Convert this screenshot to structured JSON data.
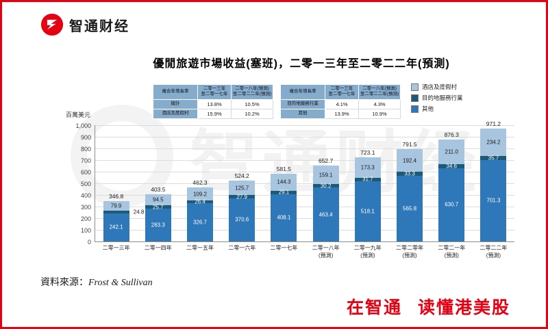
{
  "brand": {
    "logo_text": "智通财经",
    "slogan": "在智通 读懂港美股",
    "red": "#e60012"
  },
  "chart_data": {
    "type": "bar",
    "stacked": true,
    "title": "優閒旅遊市場收益(塞班)，二零一三年至二零二二年(預測)",
    "ylabel": "百萬美元",
    "ylim": [
      0,
      1000
    ],
    "ytick_interval": 100,
    "yticks": [
      "1,000",
      "900",
      "800",
      "700",
      "600",
      "500",
      "400",
      "300",
      "200",
      "100",
      "0"
    ],
    "grid": true,
    "legend_position": "top-right",
    "categories": [
      {
        "label": "二零一三年",
        "sub": ""
      },
      {
        "label": "二零一四年",
        "sub": ""
      },
      {
        "label": "二零一五年",
        "sub": ""
      },
      {
        "label": "二零一六年",
        "sub": ""
      },
      {
        "label": "二零一七年",
        "sub": ""
      },
      {
        "label": "二零一八年",
        "sub": "(預測)"
      },
      {
        "label": "二零一九年",
        "sub": "(預測)"
      },
      {
        "label": "二零二零年",
        "sub": "(預測)"
      },
      {
        "label": "二零二一年",
        "sub": "(預測)"
      },
      {
        "label": "二零二二年",
        "sub": "(預測)"
      }
    ],
    "totals": [
      346.8,
      403.5,
      462.3,
      524.2,
      581.5,
      652.7,
      723.1,
      791.5,
      876.3,
      971.2
    ],
    "series": [
      {
        "name": "酒店及度假村",
        "color": "#a7c5de",
        "values": [
          79.9,
          94.5,
          109.2,
          125.7,
          144.3,
          159.1,
          173.3,
          192.4,
          211.0,
          234.2
        ]
      },
      {
        "name": "目的地服務行業",
        "color": "#1d5a78",
        "values": [
          24.8,
          25.7,
          26.4,
          27.9,
          29.1,
          30.2,
          31.7,
          33.3,
          34.6,
          35.7
        ]
      },
      {
        "name": "其他",
        "color": "#2e77b8",
        "values": [
          242.1,
          283.3,
          326.7,
          370.6,
          408.1,
          463.4,
          518.1,
          565.8,
          630.7,
          701.3
        ]
      }
    ]
  },
  "cagr_table": {
    "header": [
      "複合年增長率",
      "二零一三年\n至二零一七年",
      "二零一八年(預測)\n至二零二二年(預測)"
    ],
    "left": [
      [
        "總計",
        "13.8%",
        "10.5%"
      ],
      [
        "酒店及度假村",
        "15.9%",
        "10.2%"
      ]
    ],
    "right": [
      [
        "目的地服務行業",
        "4.1%",
        "4.3%"
      ],
      [
        "其他",
        "13.9%",
        "10.9%"
      ]
    ]
  },
  "source": {
    "label": "資料來源：",
    "value": "Frost & Sullivan"
  }
}
